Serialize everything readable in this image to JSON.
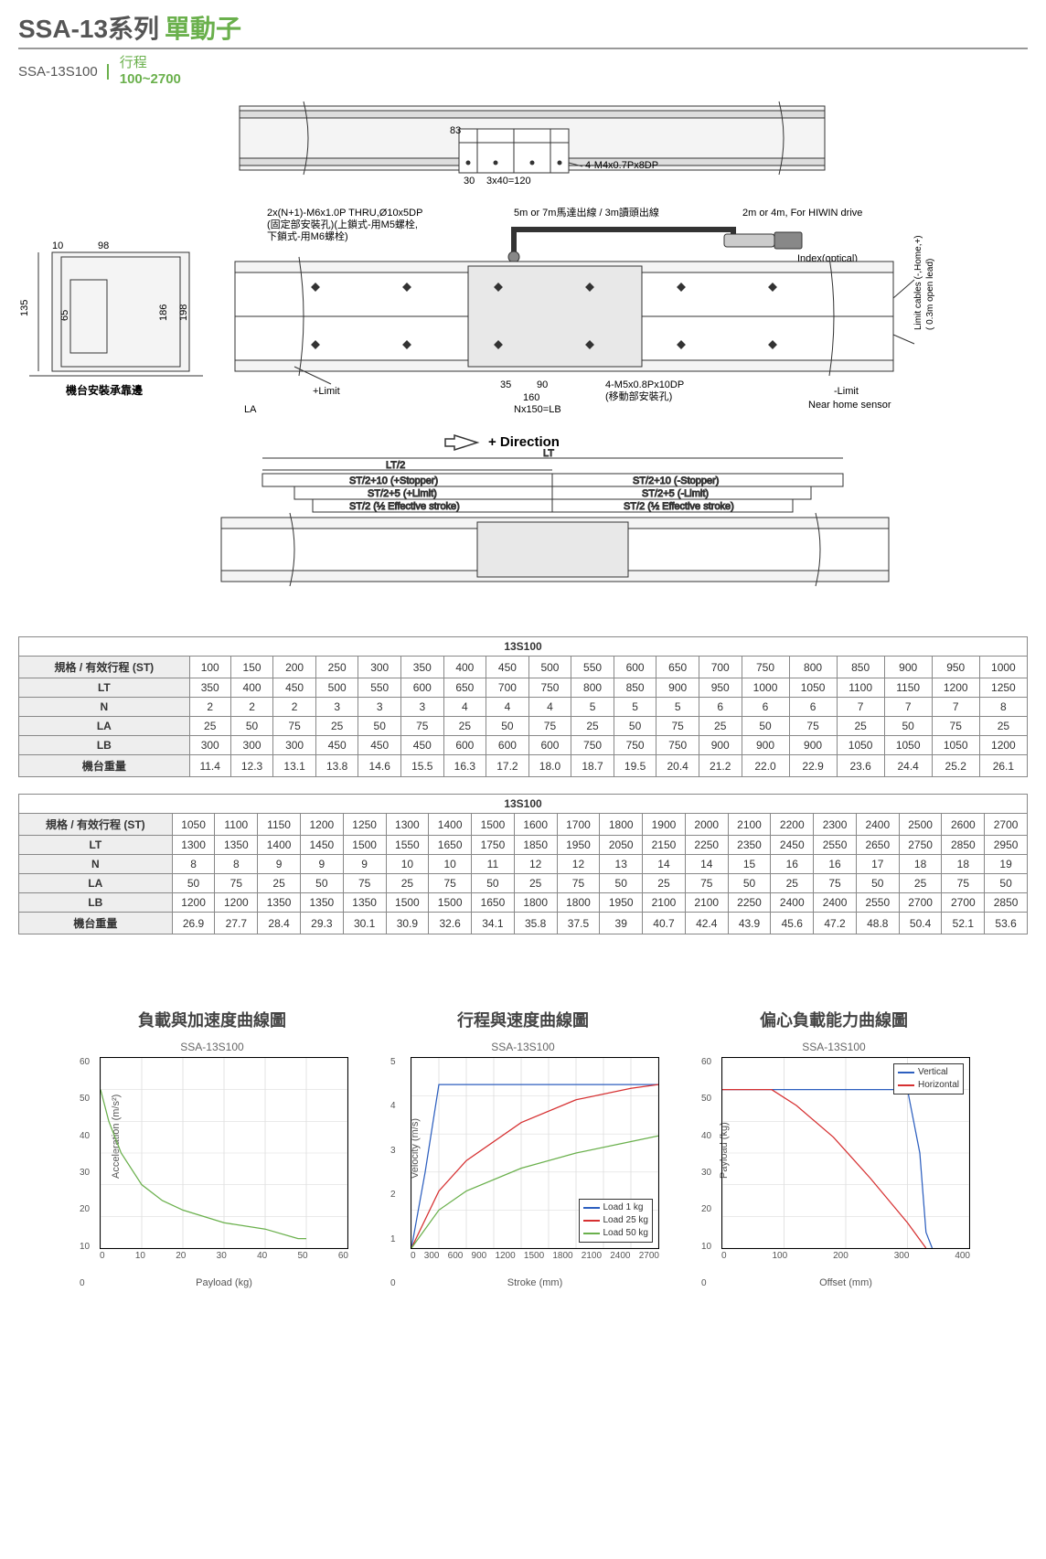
{
  "header": {
    "series": "SSA-13系列",
    "subtitle": "單動子",
    "model": "SSA-13S100",
    "spec_label": "行程",
    "spec_value": "100~2700"
  },
  "diagram": {
    "annotations": [
      "83",
      "30",
      "3x40=120",
      "4-M4x0.7Px8DP",
      "2x(N+1)-M6x1.0P THRU,Ø10x5DP",
      "(固定部安裝孔)(上鎖式-用M5螺栓,",
      "下鎖式-用M6螺栓)",
      "5m or 7m馬達出線 / 3m讀頭出線",
      "2m or 4m, For HIWIN drive",
      "Index(optical)",
      "Limit cables (-,Home,+)",
      "( 0.3m open lead)",
      "98",
      "10",
      "135",
      "65",
      "186",
      "198",
      "機台安裝承靠邊",
      "+Limit",
      "35",
      "90",
      "160",
      "4-M5x0.8Px10DP",
      "(移動部安裝孔)",
      "-Limit",
      "Near home sensor",
      "LA",
      "Nx150=LB",
      "⇦ + Direction",
      "LT",
      "LT/2",
      "ST/2+10 (+Stopper)",
      "ST/2+10 (-Stopper)",
      "ST/2+5 (+Limit)",
      "ST/2+5 (-Limit)",
      "ST/2 (½ Effective stroke)",
      "ST/2 (½ Effective stroke)"
    ]
  },
  "table1": {
    "title": "13S100",
    "row_headers": [
      "規格 / 有效行程 (ST)",
      "LT",
      "N",
      "LA",
      "LB",
      "機台重量"
    ],
    "cols": [
      "100",
      "150",
      "200",
      "250",
      "300",
      "350",
      "400",
      "450",
      "500",
      "550",
      "600",
      "650",
      "700",
      "750",
      "800",
      "850",
      "900",
      "950",
      "1000"
    ],
    "rows": [
      [
        "350",
        "400",
        "450",
        "500",
        "550",
        "600",
        "650",
        "700",
        "750",
        "800",
        "850",
        "900",
        "950",
        "1000",
        "1050",
        "1100",
        "1150",
        "1200",
        "1250"
      ],
      [
        "2",
        "2",
        "2",
        "3",
        "3",
        "3",
        "4",
        "4",
        "4",
        "5",
        "5",
        "5",
        "6",
        "6",
        "6",
        "7",
        "7",
        "7",
        "8"
      ],
      [
        "25",
        "50",
        "75",
        "25",
        "50",
        "75",
        "25",
        "50",
        "75",
        "25",
        "50",
        "75",
        "25",
        "50",
        "75",
        "25",
        "50",
        "75",
        "25"
      ],
      [
        "300",
        "300",
        "300",
        "450",
        "450",
        "450",
        "600",
        "600",
        "600",
        "750",
        "750",
        "750",
        "900",
        "900",
        "900",
        "1050",
        "1050",
        "1050",
        "1200"
      ],
      [
        "11.4",
        "12.3",
        "13.1",
        "13.8",
        "14.6",
        "15.5",
        "16.3",
        "17.2",
        "18.0",
        "18.7",
        "19.5",
        "20.4",
        "21.2",
        "22.0",
        "22.9",
        "23.6",
        "24.4",
        "25.2",
        "26.1"
      ]
    ]
  },
  "table2": {
    "title": "13S100",
    "row_headers": [
      "規格 / 有效行程 (ST)",
      "LT",
      "N",
      "LA",
      "LB",
      "機台重量"
    ],
    "cols": [
      "1050",
      "1100",
      "1150",
      "1200",
      "1250",
      "1300",
      "1400",
      "1500",
      "1600",
      "1700",
      "1800",
      "1900",
      "2000",
      "2100",
      "2200",
      "2300",
      "2400",
      "2500",
      "2600",
      "2700"
    ],
    "rows": [
      [
        "1300",
        "1350",
        "1400",
        "1450",
        "1500",
        "1550",
        "1650",
        "1750",
        "1850",
        "1950",
        "2050",
        "2150",
        "2250",
        "2350",
        "2450",
        "2550",
        "2650",
        "2750",
        "2850",
        "2950"
      ],
      [
        "8",
        "8",
        "9",
        "9",
        "9",
        "10",
        "10",
        "11",
        "12",
        "12",
        "13",
        "14",
        "14",
        "15",
        "16",
        "16",
        "17",
        "18",
        "18",
        "19"
      ],
      [
        "50",
        "75",
        "25",
        "50",
        "75",
        "25",
        "75",
        "50",
        "25",
        "75",
        "50",
        "25",
        "75",
        "50",
        "25",
        "75",
        "50",
        "25",
        "75",
        "50"
      ],
      [
        "1200",
        "1200",
        "1350",
        "1350",
        "1350",
        "1500",
        "1500",
        "1650",
        "1800",
        "1800",
        "1950",
        "2100",
        "2100",
        "2250",
        "2400",
        "2400",
        "2550",
        "2700",
        "2700",
        "2850"
      ],
      [
        "26.9",
        "27.7",
        "28.4",
        "29.3",
        "30.1",
        "30.9",
        "32.6",
        "34.1",
        "35.8",
        "37.5",
        "39",
        "40.7",
        "42.4",
        "43.9",
        "45.6",
        "47.2",
        "48.8",
        "50.4",
        "52.1",
        "53.6"
      ]
    ]
  },
  "charts": {
    "c1": {
      "title": "負載與加速度曲線圖",
      "subtitle": "SSA-13S100",
      "ylabel": "Acceleration (m/s²)",
      "xlabel": "Payload (kg)",
      "yticks": [
        "0",
        "10",
        "20",
        "30",
        "40",
        "50",
        "60"
      ],
      "xticks": [
        "0",
        "10",
        "20",
        "30",
        "40",
        "50",
        "60"
      ],
      "ylim": [
        0,
        60
      ],
      "xlim": [
        0,
        60
      ],
      "series": [
        {
          "color": "#6ab04c",
          "width": 2.5,
          "points": [
            [
              0,
              50
            ],
            [
              2,
              40
            ],
            [
              5,
              30
            ],
            [
              10,
              20
            ],
            [
              15,
              15
            ],
            [
              20,
              12
            ],
            [
              30,
              8
            ],
            [
              40,
              6
            ],
            [
              48,
              3
            ],
            [
              50,
              3
            ]
          ]
        }
      ],
      "legend": null
    },
    "c2": {
      "title": "行程與速度曲線圖",
      "subtitle": "SSA-13S100",
      "ylabel": "Velocity (m/s)",
      "xlabel": "Stroke (mm)",
      "yticks": [
        "0",
        "1",
        "2",
        "3",
        "4",
        "5"
      ],
      "xticks": [
        "0",
        "300",
        "600",
        "900",
        "1200",
        "1500",
        "1800",
        "2100",
        "2400",
        "2700"
      ],
      "ylim": [
        0,
        5
      ],
      "xlim": [
        0,
        2700
      ],
      "series": [
        {
          "color": "#2d5fbf",
          "width": 2.5,
          "label": "Load 1 kg",
          "points": [
            [
              0,
              0
            ],
            [
              150,
              2
            ],
            [
              300,
              4.3
            ],
            [
              600,
              4.3
            ],
            [
              2700,
              4.3
            ]
          ]
        },
        {
          "color": "#d63031",
          "width": 2.5,
          "label": "Load 25 kg",
          "points": [
            [
              0,
              0
            ],
            [
              300,
              1.5
            ],
            [
              600,
              2.3
            ],
            [
              1200,
              3.3
            ],
            [
              1800,
              3.9
            ],
            [
              2400,
              4.2
            ],
            [
              2700,
              4.3
            ]
          ]
        },
        {
          "color": "#6ab04c",
          "width": 2.5,
          "label": "Load 50 kg",
          "points": [
            [
              0,
              0
            ],
            [
              300,
              1.0
            ],
            [
              600,
              1.5
            ],
            [
              1200,
              2.1
            ],
            [
              1800,
              2.5
            ],
            [
              2400,
              2.8
            ],
            [
              2700,
              2.95
            ]
          ]
        }
      ],
      "legend": {
        "pos": "bottom-right"
      }
    },
    "c3": {
      "title": "偏心負載能力曲線圖",
      "subtitle": "SSA-13S100",
      "ylabel": "Payload (kg)",
      "xlabel": "Offset (mm)",
      "yticks": [
        "0",
        "10",
        "20",
        "30",
        "40",
        "50",
        "60"
      ],
      "xticks": [
        "0",
        "100",
        "200",
        "300",
        "400"
      ],
      "ylim": [
        0,
        60
      ],
      "xlim": [
        0,
        400
      ],
      "series": [
        {
          "color": "#2d5fbf",
          "width": 2.5,
          "label": "Vertical",
          "points": [
            [
              0,
              50
            ],
            [
              200,
              50
            ],
            [
              300,
              50
            ],
            [
              320,
              30
            ],
            [
              330,
              5
            ],
            [
              340,
              0
            ]
          ]
        },
        {
          "color": "#d63031",
          "width": 2.5,
          "label": "Horizontal",
          "points": [
            [
              0,
              50
            ],
            [
              80,
              50
            ],
            [
              120,
              45
            ],
            [
              180,
              35
            ],
            [
              240,
              22
            ],
            [
              300,
              8
            ],
            [
              330,
              0
            ]
          ]
        }
      ],
      "legend": {
        "pos": "top-right"
      }
    }
  }
}
